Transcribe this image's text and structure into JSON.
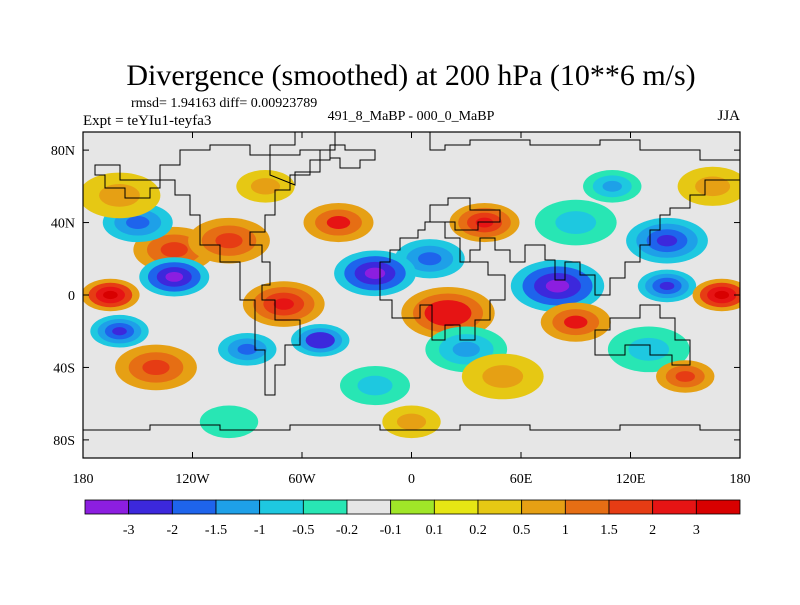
{
  "chart_data": {
    "type": "heatmap",
    "title": "Divergence (smoothed) at 200 hPa (10**6 m/s)",
    "stats_line": "rmsd= 1.94163 diff= 0.00923789",
    "left_string": "Expt = teYIu1-teyfa3",
    "center_string": "491_8_MaBP - 000_0_MaBP",
    "right_string": "JJA",
    "x_ticks": [
      "180",
      "120W",
      "60W",
      "0",
      "60E",
      "120E",
      "180"
    ],
    "x_tick_values": [
      -180,
      -120,
      -60,
      0,
      60,
      120,
      180
    ],
    "y_ticks": [
      "80N",
      "40N",
      "0",
      "40S",
      "80S"
    ],
    "y_tick_values": [
      80,
      40,
      0,
      -40,
      -80
    ],
    "xlim": [
      -180,
      180
    ],
    "ylim": [
      -90,
      90
    ],
    "colorbar": {
      "labels": [
        "-3",
        "-2",
        "-1.5",
        "-1",
        "-0.5",
        "-0.2",
        "-0.1",
        "0.1",
        "0.2",
        "0.5",
        "1",
        "1.5",
        "2",
        "3"
      ],
      "level_values": [
        -3,
        -2,
        -1.5,
        -1,
        -0.5,
        -0.2,
        -0.1,
        0.1,
        0.2,
        0.5,
        1,
        1.5,
        2,
        3
      ],
      "colors": [
        "#8c1ee0",
        "#3c28dc",
        "#1e64ec",
        "#1ea0e8",
        "#1ec8e0",
        "#28e6b4",
        "#e6e6e6",
        "#a0e628",
        "#e6e614",
        "#e6c814",
        "#e6a014",
        "#e66e14",
        "#e63c14",
        "#e61414",
        "#d80000"
      ]
    },
    "features": [
      {
        "lon": -130,
        "lat": 25,
        "value": 1.8,
        "size": 14
      },
      {
        "lon": -100,
        "lat": 30,
        "value": 1.5,
        "size": 14
      },
      {
        "lon": -150,
        "lat": 40,
        "value": -1.8,
        "size": 12
      },
      {
        "lon": -160,
        "lat": 55,
        "value": 0.8,
        "size": 14
      },
      {
        "lon": -40,
        "lat": 40,
        "value": 2.0,
        "size": 12
      },
      {
        "lon": 40,
        "lat": 40,
        "value": 2.5,
        "size": 12
      },
      {
        "lon": 10,
        "lat": 20,
        "value": -2.0,
        "size": 12
      },
      {
        "lon": 140,
        "lat": 30,
        "value": -2.5,
        "size": 14
      },
      {
        "lon": 90,
        "lat": 40,
        "value": -0.8,
        "size": 14
      },
      {
        "lon": 165,
        "lat": 60,
        "value": 0.8,
        "size": 12
      },
      {
        "lon": 110,
        "lat": 60,
        "value": -1.5,
        "size": 10
      },
      {
        "lon": -80,
        "lat": 60,
        "value": 0.8,
        "size": 10
      },
      {
        "lon": -130,
        "lat": 10,
        "value": -3.5,
        "size": 12
      },
      {
        "lon": -20,
        "lat": 12,
        "value": -3.5,
        "size": 14
      },
      {
        "lon": 80,
        "lat": 5,
        "value": -3.5,
        "size": 16
      },
      {
        "lon": 140,
        "lat": 5,
        "value": -2.5,
        "size": 10
      },
      {
        "lon": -165,
        "lat": 0,
        "value": 3.0,
        "size": 10
      },
      {
        "lon": -70,
        "lat": -5,
        "value": 2.5,
        "size": 14
      },
      {
        "lon": 20,
        "lat": -10,
        "value": 2.8,
        "size": 16
      },
      {
        "lon": 90,
        "lat": -15,
        "value": 2.0,
        "size": 12
      },
      {
        "lon": 170,
        "lat": 0,
        "value": 3.0,
        "size": 10
      },
      {
        "lon": -160,
        "lat": -20,
        "value": -2.5,
        "size": 10
      },
      {
        "lon": -50,
        "lat": -25,
        "value": -3.0,
        "size": 10
      },
      {
        "lon": 30,
        "lat": -30,
        "value": -1.5,
        "size": 14
      },
      {
        "lon": 130,
        "lat": -30,
        "value": -1.0,
        "size": 14
      },
      {
        "lon": -140,
        "lat": -40,
        "value": 1.5,
        "size": 14
      },
      {
        "lon": -90,
        "lat": -30,
        "value": -2.0,
        "size": 10
      },
      {
        "lon": 50,
        "lat": -45,
        "value": 0.8,
        "size": 14
      },
      {
        "lon": 150,
        "lat": -45,
        "value": 1.5,
        "size": 10
      },
      {
        "lon": -20,
        "lat": -50,
        "value": -0.8,
        "size": 12
      },
      {
        "lon": 0,
        "lat": -70,
        "value": 0.5,
        "size": 10
      },
      {
        "lon": -100,
        "lat": -70,
        "value": -0.5,
        "size": 10
      }
    ]
  }
}
